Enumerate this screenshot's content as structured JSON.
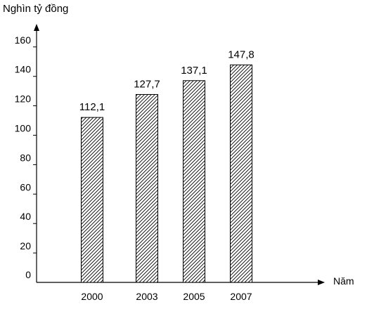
{
  "chart_data": {
    "type": "bar",
    "ylabel": "Nghìn tỷ đồng",
    "xlabel": "Năm",
    "categories": [
      "2000",
      "2003",
      "2005",
      "2007"
    ],
    "values": [
      112.1,
      127.7,
      137.1,
      147.8
    ],
    "value_labels": [
      "112,1",
      "127,7",
      "137,1",
      "147,8"
    ],
    "ylim": [
      0,
      170
    ],
    "yticks": [
      0,
      20,
      40,
      60,
      80,
      100,
      120,
      140,
      160
    ],
    "grid": false,
    "bar_fill": "diagonal-hatch",
    "colors": {
      "axis": "#000000",
      "bar_stroke": "#000000",
      "hatch": "#000000",
      "background": "#ffffff"
    }
  }
}
